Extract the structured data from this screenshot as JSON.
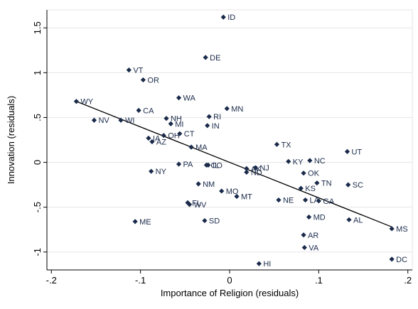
{
  "chart_data": {
    "type": "scatter",
    "xlabel": "Importance of Religion (residuals)",
    "ylabel": "Innovation (residuals)",
    "xlim": [
      -0.205,
      0.205
    ],
    "ylim": [
      -1.2,
      1.7
    ],
    "xticks": [
      -0.2,
      -0.1,
      0,
      0.1,
      0.2
    ],
    "xtick_labels": [
      "-.2",
      "-.1",
      "0",
      ".1",
      ".2"
    ],
    "yticks": [
      -1,
      -0.5,
      0,
      0.5,
      1,
      1.5
    ],
    "ytick_labels": [
      "-1",
      "-.5",
      "0",
      ".5",
      "1",
      "1.5"
    ],
    "grid": "horizontal",
    "marker_color": "#1a2a4a",
    "fit_line": {
      "x": [
        -0.172,
        0.182
      ],
      "y": [
        0.68,
        -0.72
      ]
    },
    "points": [
      {
        "label": "ID",
        "x": -0.007,
        "y": 1.62
      },
      {
        "label": "DE",
        "x": -0.027,
        "y": 1.17
      },
      {
        "label": "VT",
        "x": -0.113,
        "y": 1.03
      },
      {
        "label": "OR",
        "x": -0.097,
        "y": 0.92
      },
      {
        "label": "WA",
        "x": -0.057,
        "y": 0.72
      },
      {
        "label": "WY",
        "x": -0.172,
        "y": 0.68
      },
      {
        "label": "MN",
        "x": -0.003,
        "y": 0.6
      },
      {
        "label": "CA",
        "x": -0.102,
        "y": 0.58
      },
      {
        "label": "RI",
        "x": -0.023,
        "y": 0.51
      },
      {
        "label": "NH",
        "x": -0.071,
        "y": 0.49
      },
      {
        "label": "NV",
        "x": -0.152,
        "y": 0.47
      },
      {
        "label": "WI",
        "x": -0.122,
        "y": 0.47
      },
      {
        "label": "MI",
        "x": -0.066,
        "y": 0.43
      },
      {
        "label": "IN",
        "x": -0.025,
        "y": 0.41
      },
      {
        "label": "CT",
        "x": -0.056,
        "y": 0.32
      },
      {
        "label": "OH",
        "x": -0.074,
        "y": 0.3
      },
      {
        "label": "IA",
        "x": -0.091,
        "y": 0.27
      },
      {
        "label": "AZ",
        "x": -0.087,
        "y": 0.23
      },
      {
        "label": "TX",
        "x": 0.053,
        "y": 0.2
      },
      {
        "label": "MA",
        "x": -0.043,
        "y": 0.17
      },
      {
        "label": "UT",
        "x": 0.132,
        "y": 0.12
      },
      {
        "label": "NC",
        "x": 0.09,
        "y": 0.02
      },
      {
        "label": "KY",
        "x": 0.066,
        "y": 0.01
      },
      {
        "label": "PA",
        "x": -0.057,
        "y": -0.02
      },
      {
        "label": "CO",
        "x": -0.026,
        "y": -0.03
      },
      {
        "label": "IL",
        "x": -0.024,
        "y": -0.03
      },
      {
        "label": "NJ",
        "x": 0.029,
        "y": -0.06
      },
      {
        "label": "AK",
        "x": 0.019,
        "y": -0.07
      },
      {
        "label": "NY",
        "x": -0.088,
        "y": -0.1
      },
      {
        "label": "ND",
        "x": 0.019,
        "y": -0.11
      },
      {
        "label": "OK",
        "x": 0.083,
        "y": -0.12
      },
      {
        "label": "TN",
        "x": 0.098,
        "y": -0.23
      },
      {
        "label": "NM",
        "x": -0.035,
        "y": -0.24
      },
      {
        "label": "SC",
        "x": 0.133,
        "y": -0.25
      },
      {
        "label": "KS",
        "x": 0.08,
        "y": -0.29
      },
      {
        "label": "MO",
        "x": -0.009,
        "y": -0.32
      },
      {
        "label": "MT",
        "x": 0.008,
        "y": -0.38
      },
      {
        "label": "NE",
        "x": 0.055,
        "y": -0.42
      },
      {
        "label": "LA",
        "x": 0.085,
        "y": -0.42
      },
      {
        "label": "GA",
        "x": 0.1,
        "y": -0.43
      },
      {
        "label": "FL",
        "x": -0.047,
        "y": -0.45
      },
      {
        "label": "WV",
        "x": -0.045,
        "y": -0.47
      },
      {
        "label": "MD",
        "x": 0.089,
        "y": -0.61
      },
      {
        "label": "AL",
        "x": 0.134,
        "y": -0.64
      },
      {
        "label": "SD",
        "x": -0.028,
        "y": -0.65
      },
      {
        "label": "ME",
        "x": -0.106,
        "y": -0.66
      },
      {
        "label": "MS",
        "x": 0.182,
        "y": -0.74
      },
      {
        "label": "AR",
        "x": 0.083,
        "y": -0.81
      },
      {
        "label": "VA",
        "x": 0.084,
        "y": -0.95
      },
      {
        "label": "DC",
        "x": 0.182,
        "y": -1.08
      },
      {
        "label": "HI",
        "x": 0.033,
        "y": -1.13
      }
    ]
  }
}
